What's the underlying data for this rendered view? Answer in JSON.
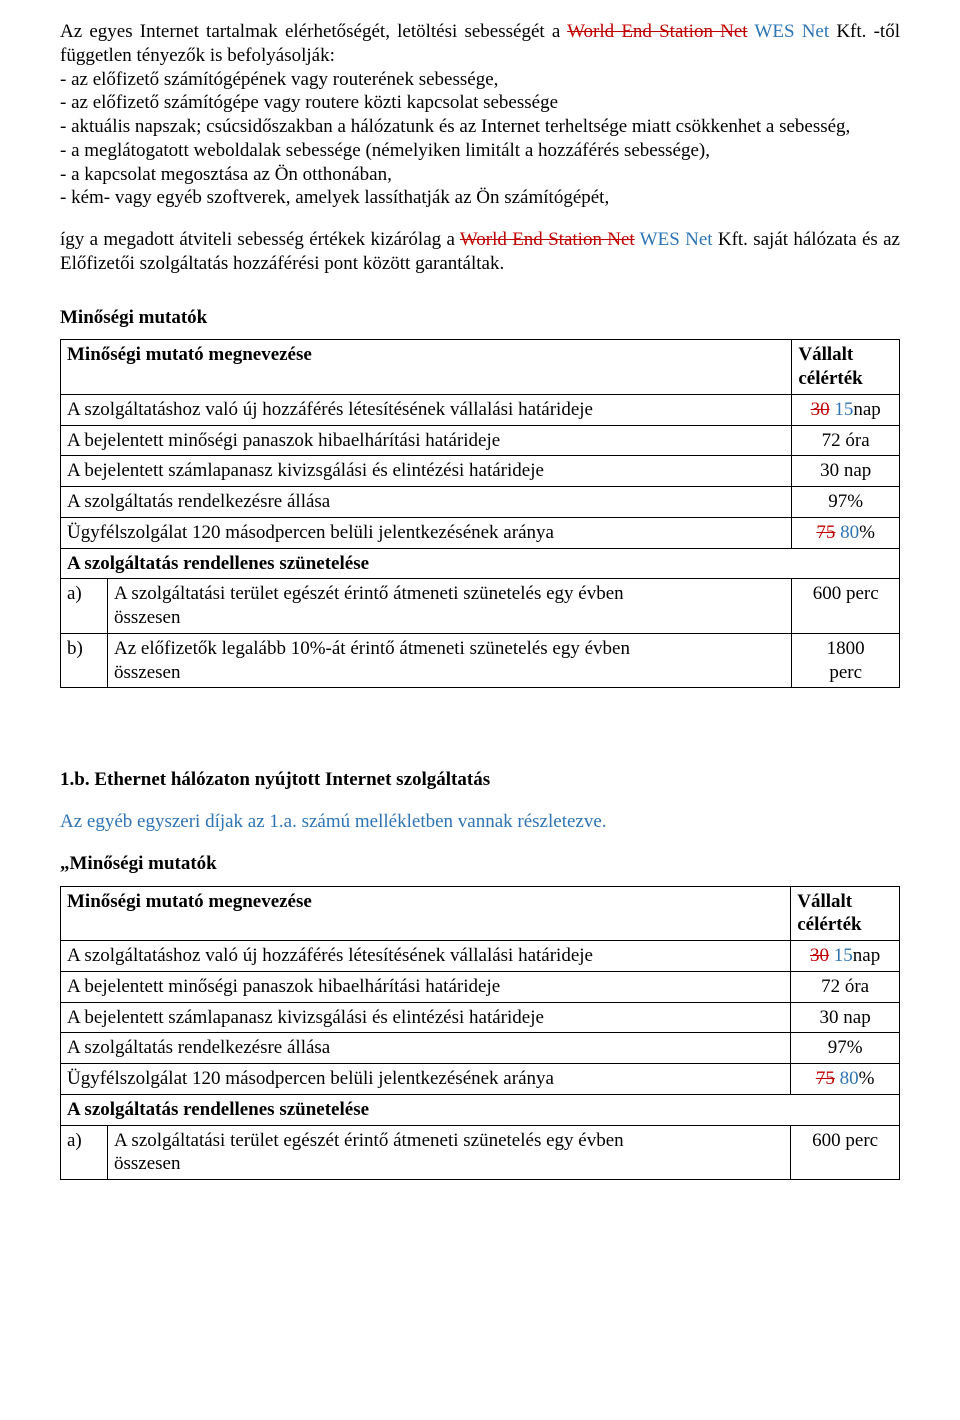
{
  "intro": {
    "p1_a": "Az egyes Internet tartalmak elérhetőségét, letöltési sebességét a ",
    "p1_strike": "World End Station Net",
    "p1_blue": " WES Net ",
    "p1_b": "Kft. -től független tényezők is befolyásolják:",
    "bullets": [
      "- az előfizető számítógépének vagy routerének sebessége,",
      "- az előfizető számítógépe vagy routere közti kapcsolat sebessége",
      "- aktuális napszak; csúcsidőszakban a hálózatunk és az Internet terheltsége miatt csökkenhet a sebesség,",
      "- a meglátogatott weboldalak sebessége (némelyiken limitált a hozzáférés sebessége),",
      "- a kapcsolat megosztása az Ön otthonában,",
      "- kém- vagy egyéb szoftverek, amelyek lassíthatják az Ön számítógépét,"
    ],
    "p2_a": "így a megadott átviteli sebesség értékek kizárólag a ",
    "p2_strike": "World End Station Net",
    "p2_blue": " WES Net ",
    "p2_b": "Kft. saját hálózata és az Előfizetői szolgáltatás hozzáférési pont között garantáltak."
  },
  "section1_title": "Minőségi mutatók",
  "table_header": {
    "left": "Minőségi mutató megnevezése",
    "right_l1": "Vállalt",
    "right_l2": "célérték"
  },
  "rows": {
    "r1": {
      "label": "A szolgáltatáshoz való új hozzáférés létesítésének vállalási határideje",
      "val_strike": "30",
      "val_blue": " 15",
      "val_suffix": "nap"
    },
    "r2": {
      "label": "A bejelentett minőségi panaszok hibaelhárítási határideje",
      "val": "72 óra"
    },
    "r3": {
      "label": "A bejelentett számlapanasz kivizsgálási és elintézési határideje",
      "val": "30 nap"
    },
    "r4": {
      "label": "A szolgáltatás rendelkezésre állása",
      "val": "97%"
    },
    "r5": {
      "label": "Ügyfélszolgálat 120 másodpercen belüli jelentkezésének aránya",
      "val_strike": "75",
      "val_blue": " 80",
      "val_suffix": "%"
    },
    "r6": {
      "label": "A szolgáltatás rendellenes szünetelése"
    },
    "r7": {
      "sub": "a)",
      "label_l1": "A szolgáltatási terület egészét érintő átmeneti szünetelés egy évben",
      "label_l2": "összesen",
      "val": "600 perc"
    },
    "r8": {
      "sub": "b)",
      "label_l1": "Az előfizetők legalább 10%-át érintő átmeneti szünetelés egy évben",
      "label_l2": "összesen",
      "val_l1": "1800",
      "val_l2": "perc"
    }
  },
  "heading_1b": "1.b. Ethernet hálózaton nyújtott Internet szolgáltatás",
  "blue_note": "Az egyéb egyszeri díjak az 1.a. számú mellékletben vannak részletezve.",
  "section2_title": "„Minőségi mutatók"
}
